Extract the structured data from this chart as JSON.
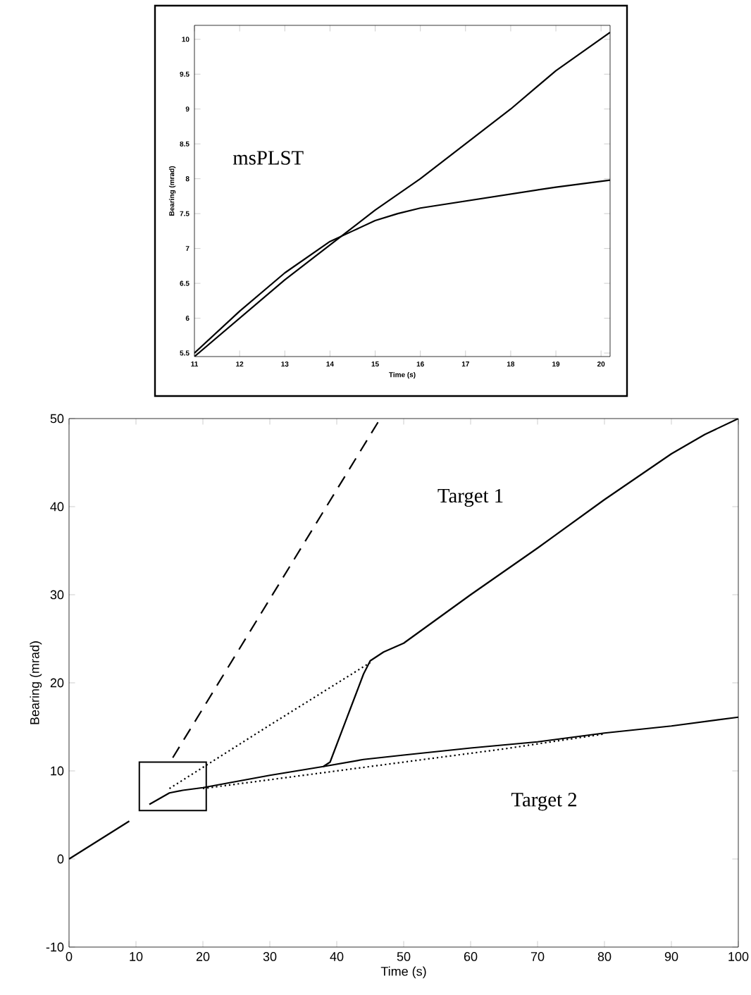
{
  "chart_data": [
    {
      "type": "line",
      "xlabel": "Time (s)",
      "ylabel": "Bearing (mrad)",
      "xlim": [
        11,
        20.2
      ],
      "ylim": [
        5.45,
        10.2
      ],
      "xticks": [
        11,
        12,
        13,
        14,
        15,
        16,
        17,
        18,
        19,
        20
      ],
      "yticks": [
        5.5,
        6,
        6.5,
        7,
        7.5,
        8,
        8.5,
        9,
        9.5,
        10
      ],
      "annotations": [
        "msPLST"
      ],
      "series": [
        {
          "color": "#000000",
          "line_style": "solid",
          "x": [
            11,
            12,
            13,
            14,
            15,
            16,
            17,
            18,
            19,
            20.2
          ],
          "values": [
            5.45,
            6.0,
            6.55,
            7.05,
            7.55,
            8.0,
            8.5,
            9.0,
            9.55,
            10.1
          ]
        },
        {
          "color": "#000000",
          "line_style": "solid",
          "x": [
            11,
            12,
            13,
            14,
            14.5,
            15,
            15.5,
            16,
            17,
            18,
            19,
            20.2
          ],
          "values": [
            5.5,
            6.1,
            6.65,
            7.1,
            7.25,
            7.4,
            7.5,
            7.58,
            7.68,
            7.78,
            7.88,
            7.98
          ]
        }
      ]
    },
    {
      "type": "line",
      "xlabel": "Time (s)",
      "ylabel": "Bearing (mrad)",
      "xlim": [
        0,
        100
      ],
      "ylim": [
        -10,
        50
      ],
      "xticks": [
        0,
        10,
        20,
        30,
        40,
        50,
        60,
        70,
        80,
        90,
        100
      ],
      "yticks": [
        -10,
        0,
        10,
        20,
        30,
        40,
        50
      ],
      "annotations": [
        "Target 1",
        "Target 2"
      ],
      "series": [
        {
          "color": "#000000",
          "line_style": "solid",
          "x": [
            0,
            9
          ],
          "values": [
            0,
            4.3
          ]
        },
        {
          "color": "#000000",
          "line_style": "dashed",
          "x": [
            15.5,
            46.5
          ],
          "values": [
            11.5,
            50
          ]
        },
        {
          "color": "#000000",
          "line_style": "solid",
          "x": [
            12,
            15,
            17,
            20,
            30,
            38,
            39,
            40,
            42,
            44,
            45,
            47,
            50,
            60,
            70,
            80,
            90,
            95,
            100
          ],
          "values": [
            6.2,
            7.5,
            7.8,
            8.1,
            9.5,
            10.5,
            11,
            13,
            17,
            21,
            22.5,
            23.5,
            24.5,
            30,
            35.3,
            40.8,
            46,
            48.2,
            50
          ]
        },
        {
          "color": "#000000",
          "line_style": "solid",
          "x": [
            38,
            44,
            50,
            60,
            70,
            80,
            90,
            100
          ],
          "values": [
            10.5,
            11.3,
            11.8,
            12.6,
            13.3,
            14.3,
            15.1,
            16.1
          ]
        },
        {
          "color": "#000000",
          "line_style": "dotted",
          "x": [
            15,
            30,
            45
          ],
          "values": [
            8,
            15.2,
            22.3
          ]
        },
        {
          "color": "#000000",
          "line_style": "dotted",
          "x": [
            20,
            45,
            65,
            80
          ],
          "values": [
            8,
            10.5,
            12.5,
            14.2
          ]
        }
      ]
    }
  ]
}
